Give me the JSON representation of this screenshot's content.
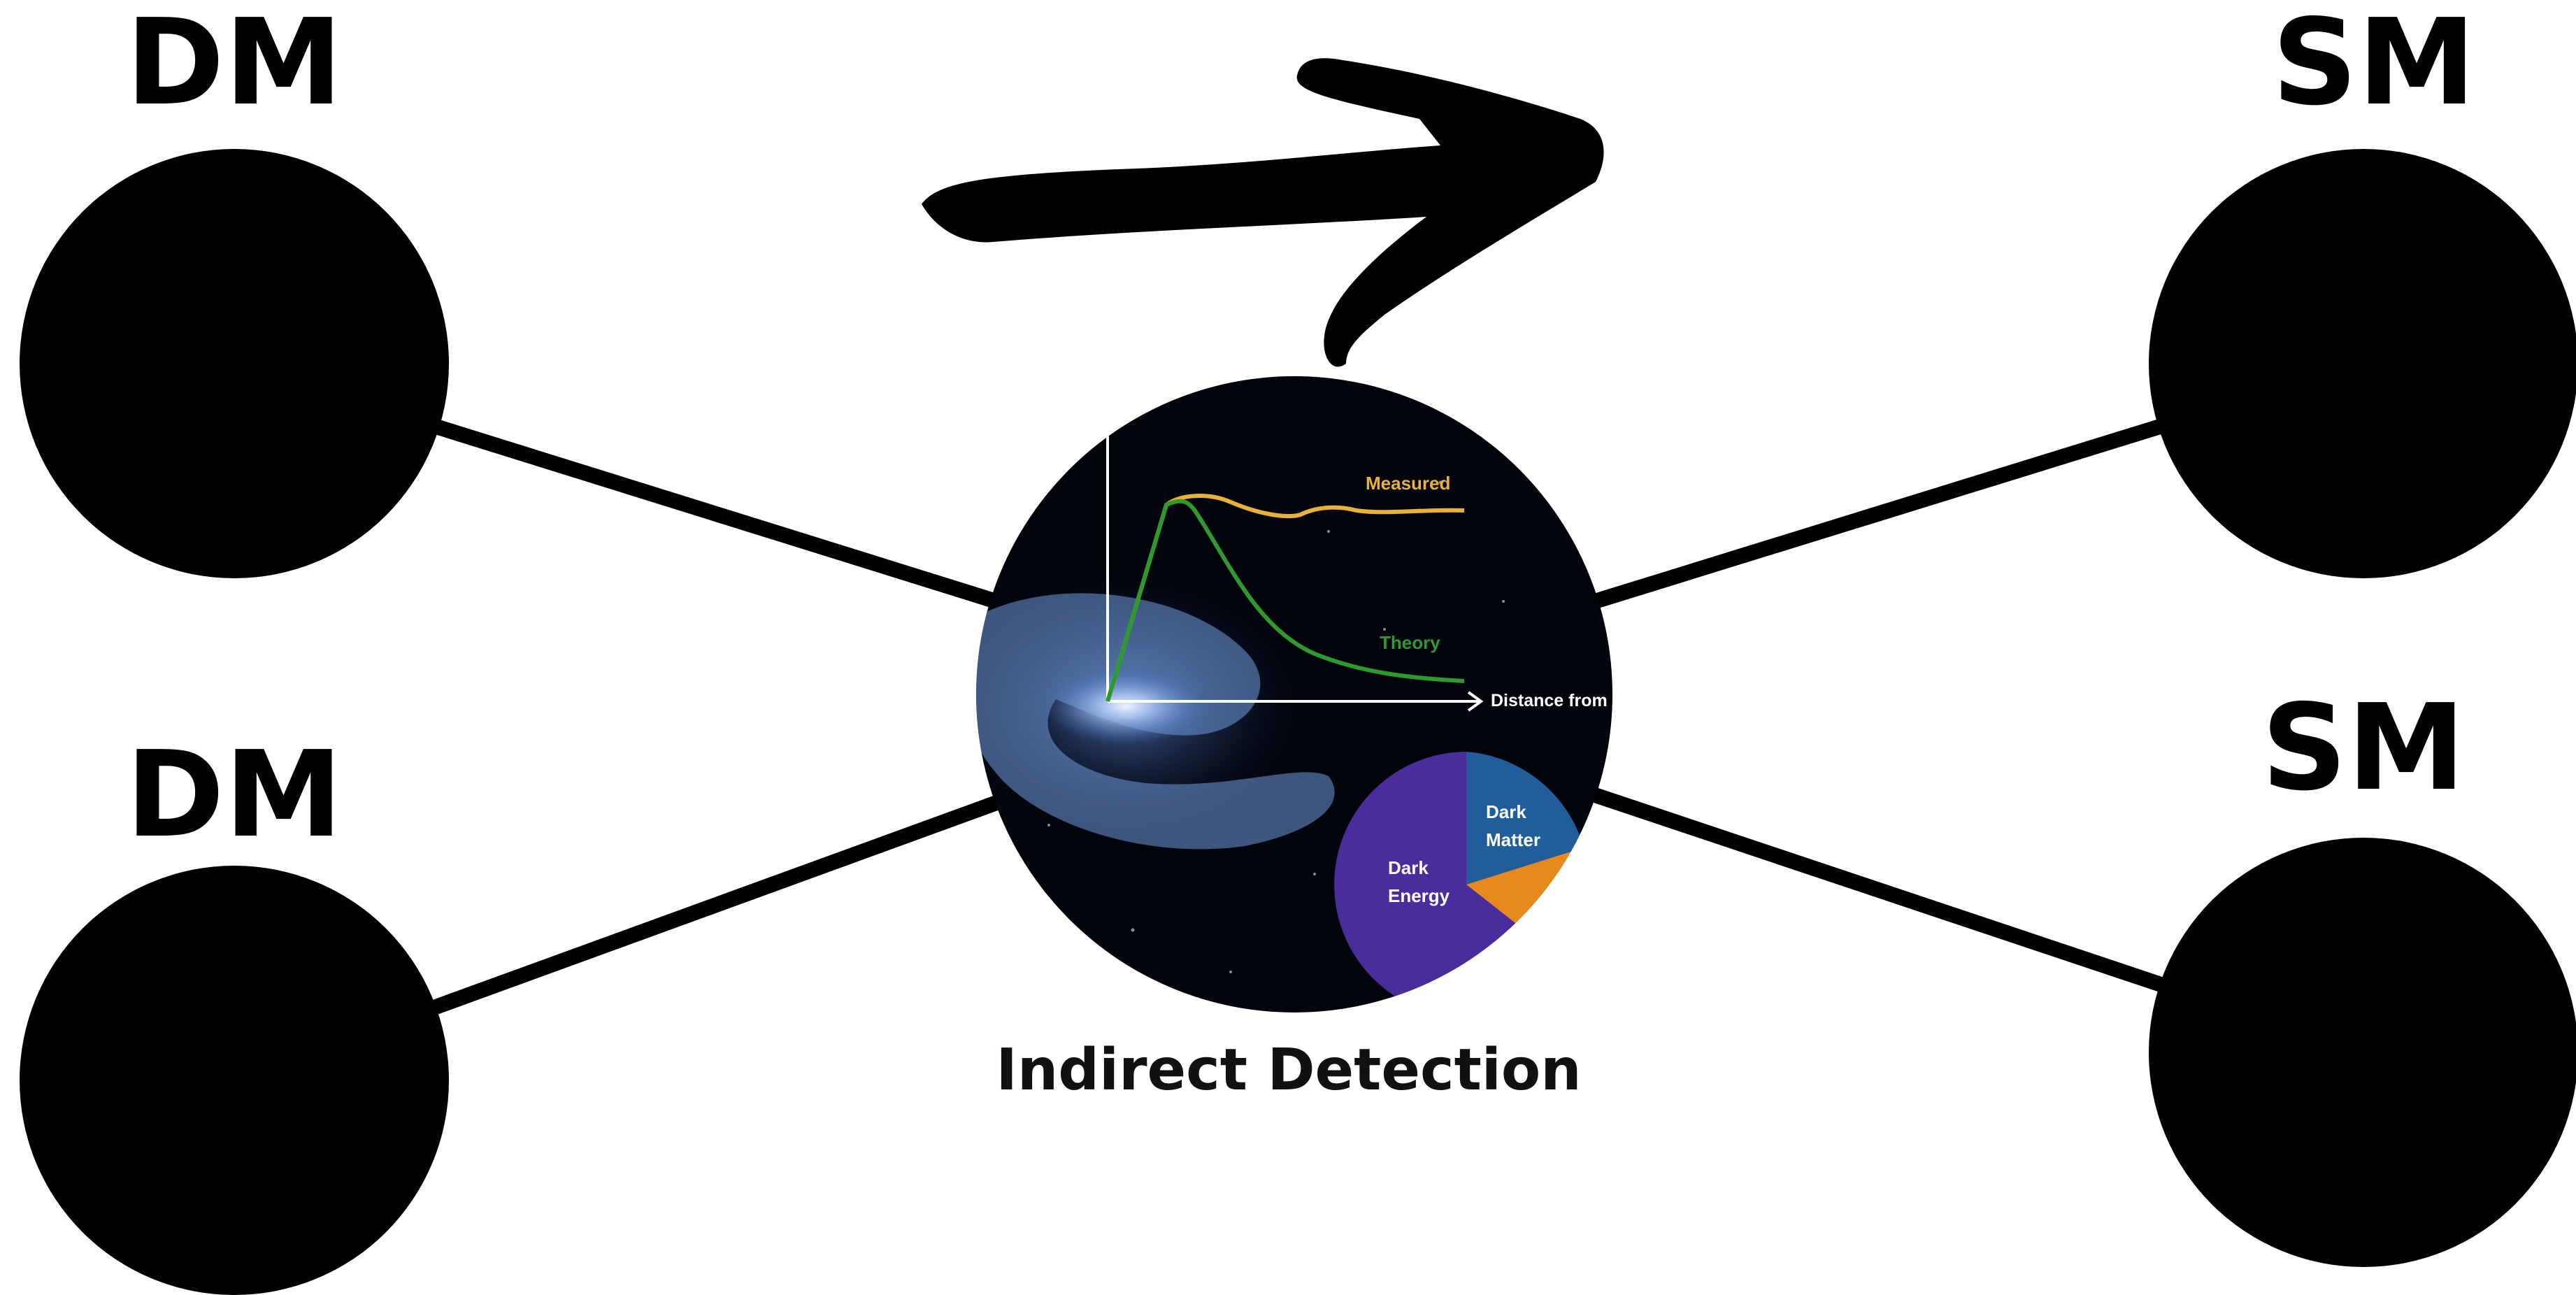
{
  "diagram": {
    "nodes": [
      {
        "id": "dm-top",
        "label": "DM"
      },
      {
        "id": "dm-bottom",
        "label": "DM"
      },
      {
        "id": "sm-top",
        "label": "SM"
      },
      {
        "id": "sm-bottom",
        "label": "SM"
      }
    ],
    "edges": [
      {
        "from": "dm-top",
        "to": "vertex"
      },
      {
        "from": "dm-bottom",
        "to": "vertex"
      },
      {
        "from": "vertex",
        "to": "sm-top"
      },
      {
        "from": "vertex",
        "to": "sm-bottom"
      }
    ],
    "vertex_caption": "Indirect Detection",
    "arrow_direction": "right",
    "inset": {
      "rotation_curve": {
        "measured_label": "Measured",
        "theory_label": "Theory",
        "x_axis_label": "Distance from c",
        "colors": {
          "measured": "#e8b23a",
          "theory": "#2e9a2e",
          "axis": "#ffffff"
        }
      },
      "pie": {
        "slices": [
          {
            "label": "Dark\nMatter",
            "label_lines": [
              "Dark",
              "Matter"
            ],
            "color": "#1f5e9a"
          },
          {
            "label": "Dark\nEnergy",
            "label_lines": [
              "Dark",
              "Energy"
            ],
            "color": "#4a2c9c"
          },
          {
            "label": "",
            "color": "#e8891e"
          }
        ]
      },
      "background_color": "#02040c",
      "galaxy_color": "#6f9bdc"
    }
  }
}
